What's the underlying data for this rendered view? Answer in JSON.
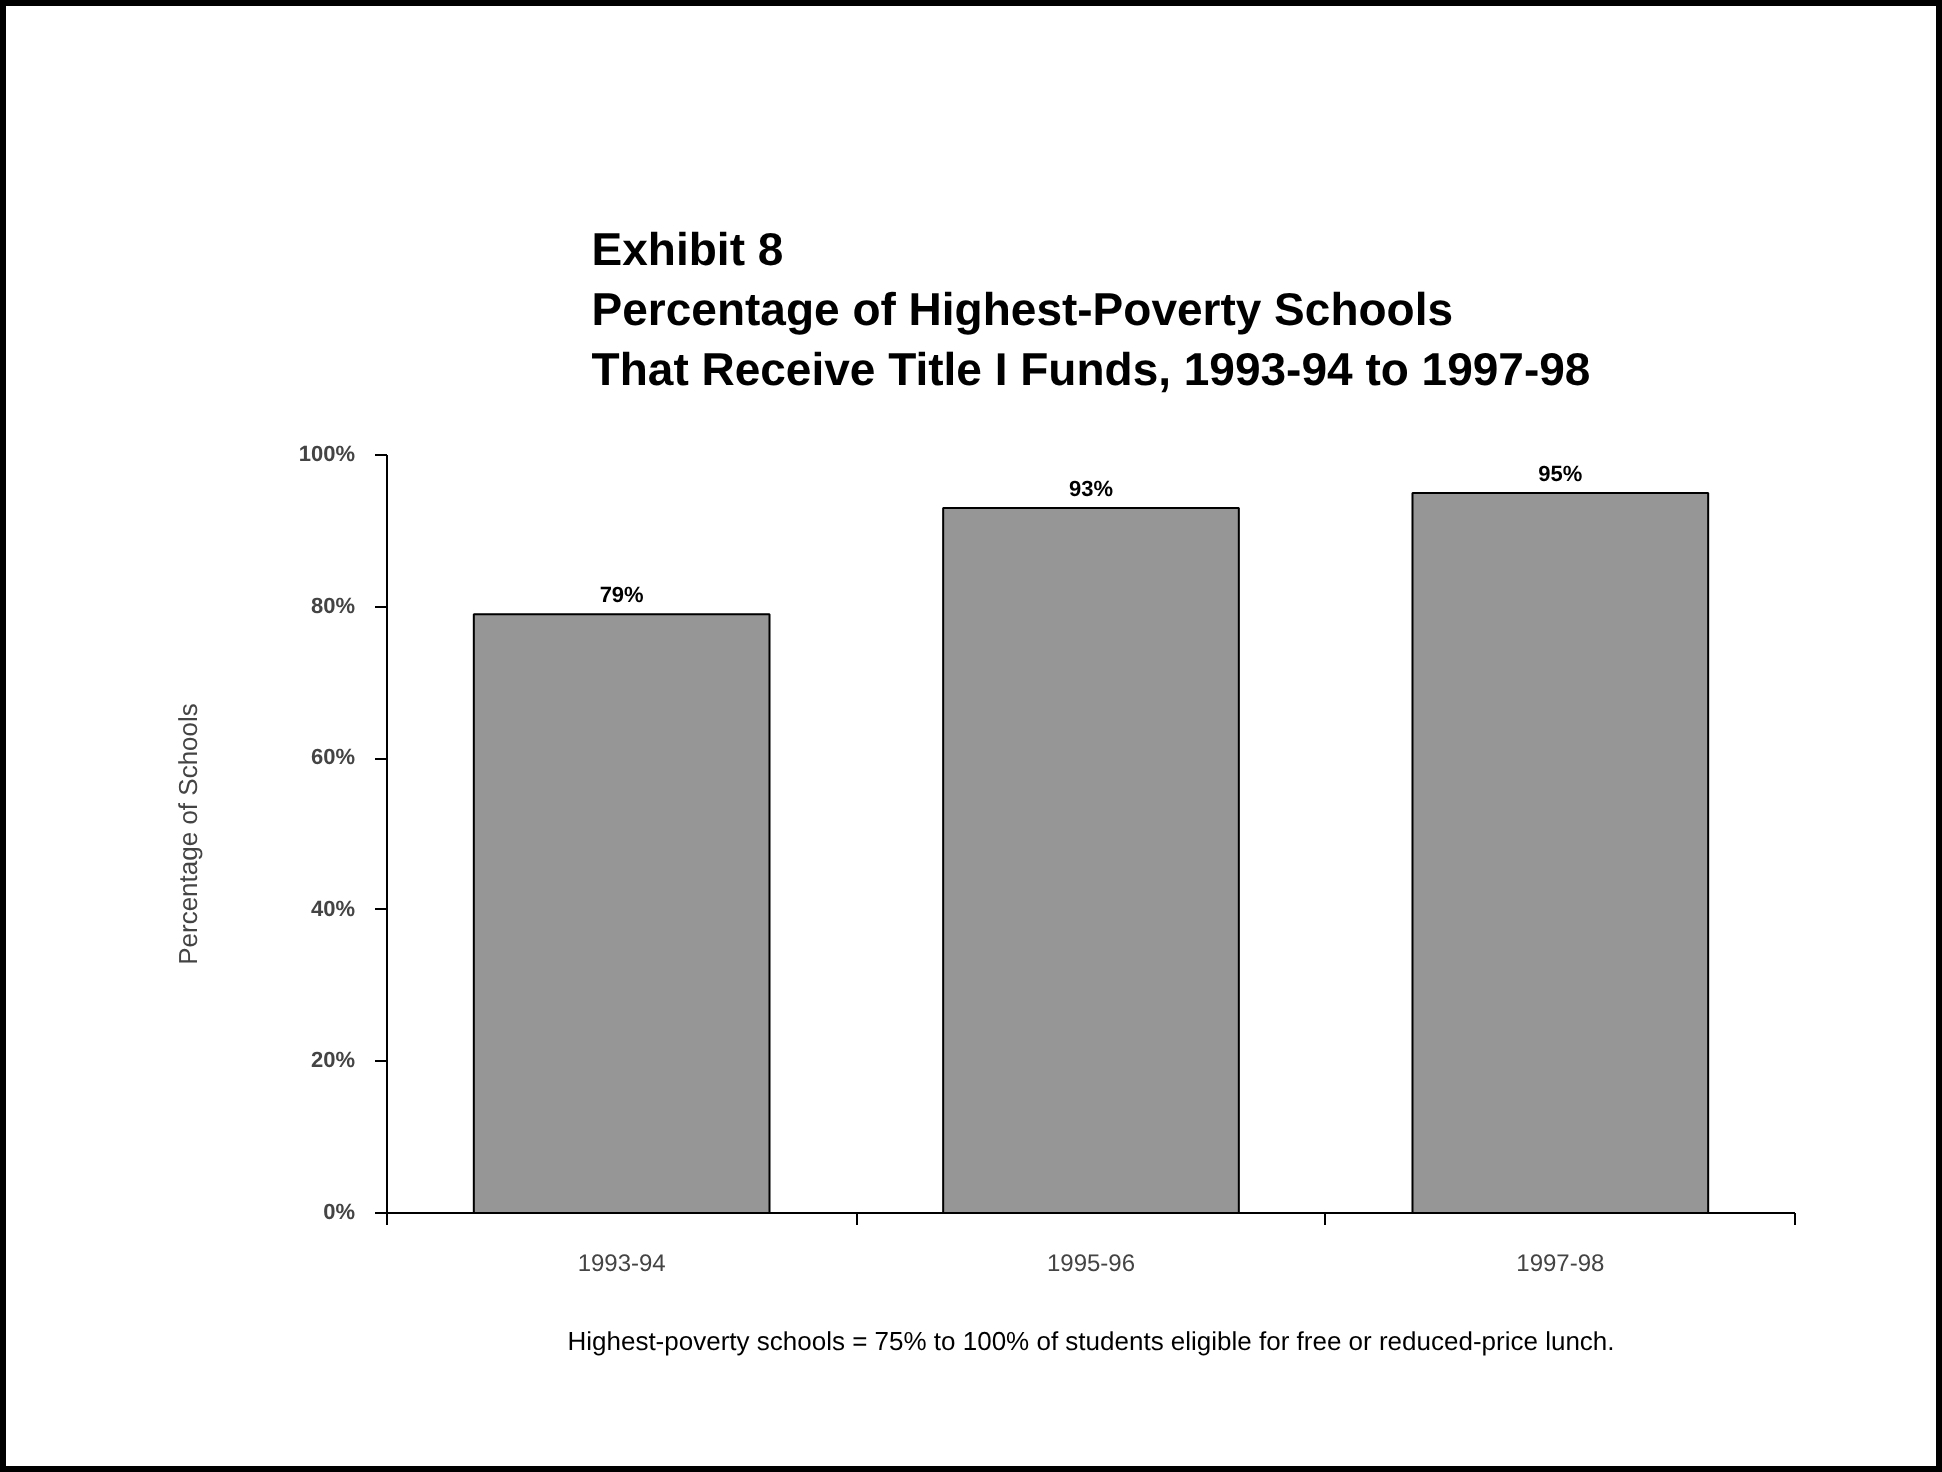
{
  "chart_data": {
    "type": "bar",
    "title": "Exhibit 8\nPercentage of Highest-Poverty Schools\nThat Receive Title I Funds, 1993-94 to 1997-98",
    "ylabel": "Percentage of Schools",
    "categories": [
      "1993-94",
      "1995-96",
      "1997-98"
    ],
    "values": [
      79,
      93,
      95
    ],
    "color": "#969696",
    "ylim": [
      0,
      100
    ],
    "yticks": [
      {
        "value": 0,
        "label": "0%"
      },
      {
        "value": 20,
        "label": "20%"
      },
      {
        "value": 40,
        "label": "40%"
      },
      {
        "value": 60,
        "label": "60%"
      },
      {
        "value": 80,
        "label": "80%"
      },
      {
        "value": 100,
        "label": "100%"
      }
    ],
    "value_labels": [
      "79%",
      "93%",
      "95%"
    ],
    "annotations": [
      "Highest-poverty schools = 75% to 100% of students eligible for free or reduced-price lunch."
    ]
  }
}
